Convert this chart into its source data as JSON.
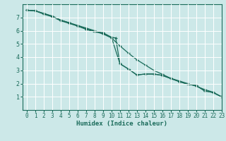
{
  "title": "",
  "xlabel": "Humidex (Indice chaleur)",
  "ylabel": "",
  "background_color": "#cce8e8",
  "grid_color": "#ffffff",
  "line_color": "#1a6b5a",
  "xlim": [
    -0.5,
    23
  ],
  "ylim": [
    0,
    8
  ],
  "xticks": [
    0,
    1,
    2,
    3,
    4,
    5,
    6,
    7,
    8,
    9,
    10,
    11,
    12,
    13,
    14,
    15,
    16,
    17,
    18,
    19,
    20,
    21,
    22,
    23
  ],
  "yticks": [
    1,
    2,
    3,
    4,
    5,
    6,
    7
  ],
  "line1_x": [
    0,
    1,
    2,
    3,
    4,
    5,
    6,
    7,
    8,
    9,
    10,
    11,
    12,
    13,
    14,
    15,
    16,
    17,
    18,
    19,
    20,
    21,
    22,
    23
  ],
  "line1_y": [
    7.55,
    7.5,
    7.25,
    7.05,
    6.75,
    6.55,
    6.35,
    6.15,
    5.95,
    5.75,
    5.45,
    4.85,
    4.3,
    3.8,
    3.4,
    3.0,
    2.7,
    2.4,
    2.2,
    2.0,
    1.8,
    1.55,
    1.35,
    1.0
  ],
  "line2_x": [
    0,
    1,
    2,
    3,
    4,
    5,
    6,
    7,
    8,
    9,
    10,
    11,
    12,
    13,
    14,
    15,
    16,
    17,
    18,
    19,
    20,
    21,
    22,
    23
  ],
  "line2_y": [
    7.55,
    7.5,
    7.3,
    7.1,
    6.8,
    6.6,
    6.4,
    6.2,
    6.0,
    5.8,
    5.5,
    3.5,
    3.1,
    2.65,
    2.72,
    2.72,
    2.62,
    2.38,
    2.15,
    1.95,
    1.85,
    1.45,
    1.32,
    1.0
  ],
  "line3_x": [
    0,
    1,
    2,
    3,
    4,
    5,
    6,
    7,
    8,
    9,
    10,
    10.5,
    11,
    12,
    13,
    14,
    15,
    16,
    17,
    18,
    19,
    20,
    21,
    22,
    23
  ],
  "line3_y": [
    7.55,
    7.5,
    7.3,
    7.1,
    6.8,
    6.6,
    6.35,
    6.1,
    5.9,
    5.85,
    5.5,
    5.45,
    3.5,
    3.1,
    2.65,
    2.72,
    2.72,
    2.62,
    2.38,
    2.15,
    1.95,
    1.85,
    1.45,
    1.32,
    1.0
  ],
  "tick_fontsize": 5.5,
  "xlabel_fontsize": 6.5
}
